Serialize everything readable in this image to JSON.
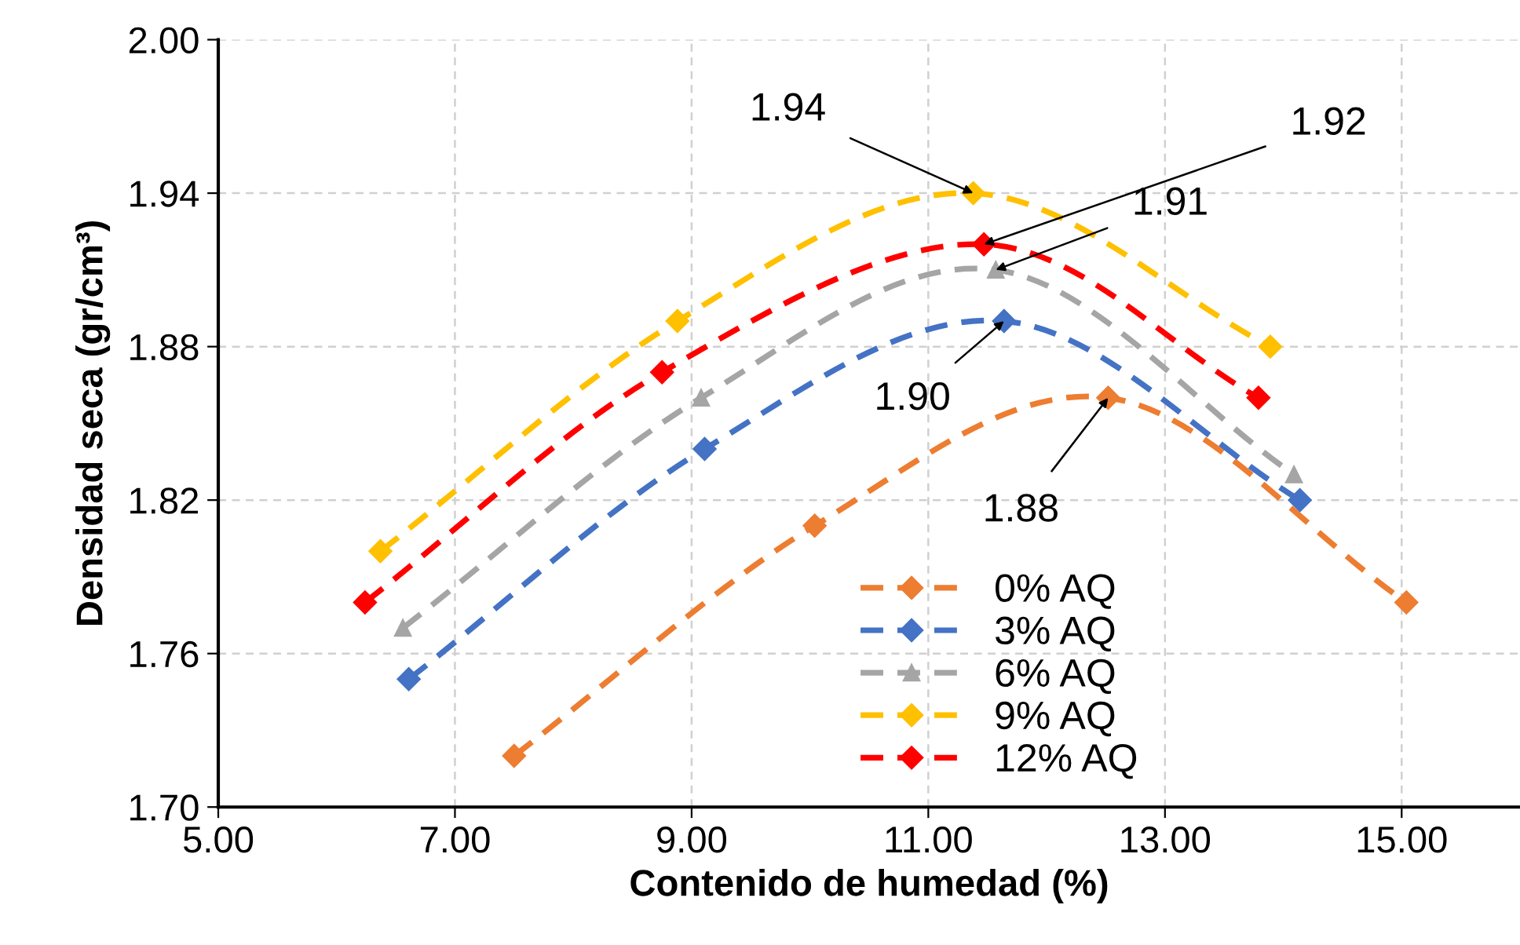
{
  "chart_data": {
    "type": "line",
    "xlabel": "Contenido de humedad (%)",
    "ylabel": "Densidad seca (gr/cm³)",
    "xlim": [
      5,
      16
    ],
    "ylim": [
      1.7,
      2.0
    ],
    "xticks": [
      {
        "value": 5,
        "label": "5.00"
      },
      {
        "value": 7,
        "label": "7.00"
      },
      {
        "value": 9,
        "label": "9.00"
      },
      {
        "value": 11,
        "label": "11.00"
      },
      {
        "value": 13,
        "label": "13.00"
      },
      {
        "value": 15,
        "label": "15.00"
      }
    ],
    "yticks": [
      {
        "value": 1.7,
        "label": "1.70"
      },
      {
        "value": 1.76,
        "label": "1.76"
      },
      {
        "value": 1.82,
        "label": "1.82"
      },
      {
        "value": 1.88,
        "label": "1.88"
      },
      {
        "value": 1.94,
        "label": "1.94"
      },
      {
        "value": 2.0,
        "label": "2.00"
      }
    ],
    "grid": true,
    "legend": "bottom",
    "line_style": "dashed",
    "series": [
      {
        "name": "0% AQ",
        "color": "#ed7d31",
        "marker": "diamond",
        "x": [
          7.5,
          10.04,
          12.52,
          15.04
        ],
        "values": [
          1.72,
          1.81,
          1.86,
          1.78
        ]
      },
      {
        "name": "3% AQ",
        "color": "#4472c4",
        "marker": "diamond",
        "x": [
          6.61,
          9.11,
          11.64,
          14.14
        ],
        "values": [
          1.75,
          1.84,
          1.89,
          1.82
        ]
      },
      {
        "name": "6% AQ",
        "color": "#a5a5a5",
        "marker": "triangle",
        "x": [
          6.56,
          9.08,
          11.57,
          14.09
        ],
        "values": [
          1.77,
          1.86,
          1.91,
          1.83
        ]
      },
      {
        "name": "9% AQ",
        "color": "#ffc000",
        "marker": "diamond",
        "x": [
          6.37,
          8.88,
          11.38,
          13.89
        ],
        "values": [
          1.8,
          1.89,
          1.94,
          1.88
        ]
      },
      {
        "name": "12% AQ",
        "color": "#ff0000",
        "marker": "diamond",
        "x": [
          6.24,
          8.75,
          11.47,
          13.79
        ],
        "values": [
          1.78,
          1.87,
          1.92,
          1.86
        ]
      }
    ],
    "annotations": [
      {
        "text": "1.94",
        "x": 11.38,
        "y": 1.94
      },
      {
        "text": "1.92",
        "x": 11.47,
        "y": 1.92
      },
      {
        "text": "1.91",
        "x": 11.57,
        "y": 1.91
      },
      {
        "text": "1.90",
        "x": 11.64,
        "y": 1.89
      },
      {
        "text": "1.88",
        "x": 12.52,
        "y": 1.86
      }
    ]
  }
}
